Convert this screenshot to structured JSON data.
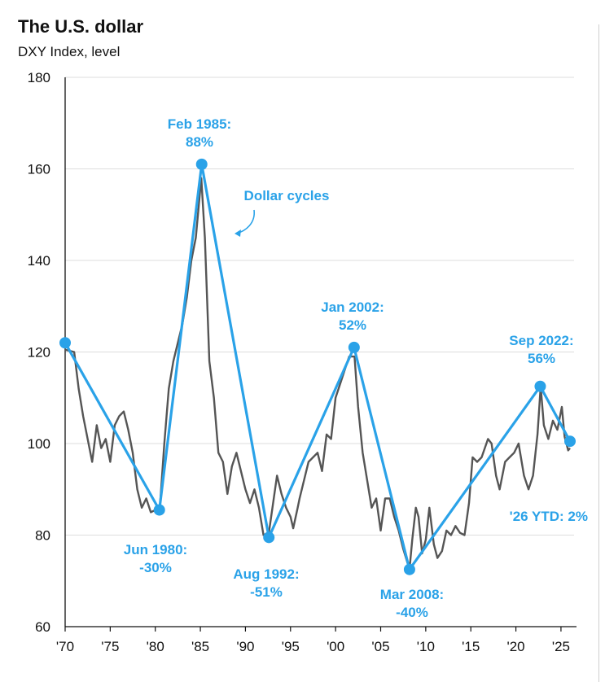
{
  "header": {
    "title": "The U.S. dollar",
    "subtitle": "DXY Index, level"
  },
  "chart_data": {
    "type": "line",
    "title": "The U.S. dollar",
    "subtitle": "DXY Index, level",
    "xlabel": "",
    "ylabel": "",
    "ylim": [
      60,
      180
    ],
    "xlim": [
      1970,
      2026
    ],
    "y_ticks": [
      60,
      80,
      100,
      120,
      140,
      160,
      180
    ],
    "x_ticks": [
      1970,
      1975,
      1980,
      1985,
      1990,
      1995,
      2000,
      2005,
      2010,
      2015,
      2020,
      2025
    ],
    "x_tick_labels": [
      "'70",
      "'75",
      "'80",
      "'85",
      "'90",
      "'95",
      "'00",
      "'05",
      "'10",
      "'15",
      "'20",
      "'25"
    ],
    "grid": "horizontal",
    "colors": {
      "index": "#555555",
      "cycles": "#2aa2e8"
    },
    "series": [
      {
        "values_x": [
          1970,
          1971,
          1971.5,
          1972,
          1973,
          1973.5,
          1974,
          1974.5,
          1975,
          1975.5,
          1976,
          1976.5,
          1977,
          1977.5,
          1978,
          1978.5,
          1979,
          1979.5,
          1980.5,
          1981,
          1981.5,
          1982,
          1982.5,
          1983,
          1983.5,
          1984,
          1984.5,
          1985.1,
          1985.5,
          1986,
          1986.5,
          1987,
          1987.5,
          1988,
          1988.5,
          1989,
          1989.5,
          1990,
          1990.5,
          1991,
          1991.5,
          1992,
          1992.6,
          1993,
          1993.5,
          1994,
          1994.5,
          1995,
          1995.3,
          1995.8,
          1996,
          1996.5,
          1997,
          1997.5,
          1998,
          1998.5,
          1999,
          1999.5,
          2000,
          2000.5,
          2001,
          2001.5,
          2002.1,
          2002.5,
          2003,
          2003.5,
          2004,
          2004.5,
          2005,
          2005.5,
          2006,
          2006.5,
          2007,
          2007.5,
          2008.2,
          2008.5,
          2008.9,
          2009.2,
          2009.6,
          2010,
          2010.4,
          2010.9,
          2011.3,
          2011.8,
          2012.3,
          2012.8,
          2013.3,
          2013.8,
          2014.3,
          2014.8,
          2015.2,
          2015.7,
          2016.2,
          2016.9,
          2017.3,
          2017.8,
          2018.2,
          2018.8,
          2019.3,
          2019.8,
          2020.3,
          2020.9,
          2021.4,
          2021.9,
          2022.4,
          2022.75,
          2023.1,
          2023.6,
          2024.1,
          2024.6,
          2025.1,
          2025.4,
          2025.8,
          2026
        ],
        "values": [
          120.5,
          120.0,
          112.0,
          106.0,
          96.0,
          104.0,
          99.0,
          101.0,
          96.0,
          104.0,
          106.0,
          107.0,
          103.0,
          98.0,
          90.0,
          86.0,
          88.0,
          85.0,
          86.0,
          100.0,
          112.0,
          118.0,
          122.0,
          126.0,
          132.0,
          140.0,
          145.0,
          158.0,
          145.0,
          118.0,
          110.0,
          98.0,
          96.0,
          89.0,
          95.0,
          98.0,
          94.0,
          90.0,
          87.0,
          90.0,
          86.0,
          80.0,
          80.5,
          86.0,
          93.0,
          89.0,
          86.0,
          84.0,
          81.5,
          86.0,
          88.0,
          92.0,
          96.0,
          97.0,
          98.0,
          94.0,
          102.0,
          101.0,
          110.0,
          113.0,
          116.0,
          119.0,
          119.0,
          108.0,
          98.0,
          92.0,
          86.0,
          88.0,
          81.0,
          88.0,
          88.0,
          84.0,
          81.0,
          77.0,
          72.5,
          79.0,
          86.0,
          84.0,
          76.0,
          79.0,
          86.0,
          78.0,
          75.0,
          76.5,
          81.0,
          80.0,
          82.0,
          80.5,
          80.0,
          87.0,
          97.0,
          96.0,
          97.0,
          101.0,
          100.0,
          93.0,
          90.0,
          96.0,
          97.0,
          98.0,
          100.0,
          93.0,
          90.0,
          93.0,
          102.0,
          112.5,
          104.0,
          101.0,
          105.0,
          103.0,
          108.0,
          101.5,
          98.5,
          99.0
        ]
      },
      {
        "values_x": [
          1970,
          1980.45,
          1985.15,
          1992.6,
          2002.05,
          2008.2,
          2022.7,
          2026
        ],
        "values": [
          122,
          85.5,
          161,
          79.5,
          121,
          72.5,
          112.5,
          100.5
        ]
      }
    ],
    "annotations": [
      {
        "text": [
          "Feb 1985:",
          "88%"
        ]
      },
      {
        "text": [
          "Dollar cycles"
        ]
      },
      {
        "text": [
          "Jan 2002:",
          "52%"
        ]
      },
      {
        "text": [
          "Sep 2022:",
          "56%"
        ]
      },
      {
        "text": [
          "Jun 1980:",
          "-30%"
        ]
      },
      {
        "text": [
          "Aug 1992:",
          "-51%"
        ]
      },
      {
        "text": [
          "Mar 2008:",
          "-40%"
        ]
      },
      {
        "text": [
          "'26 YTD:  2%"
        ]
      }
    ]
  }
}
